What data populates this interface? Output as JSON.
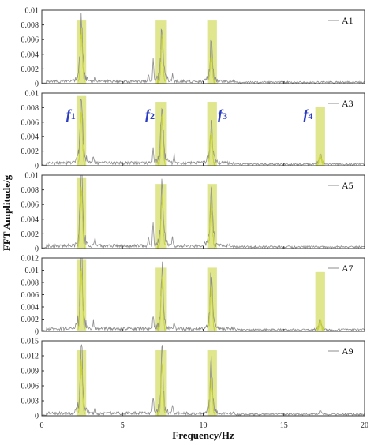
{
  "chart_data": {
    "type": "line",
    "xlabel": "Frequency/Hz",
    "ylabel": "FFT Amplitude/g",
    "xlim": [
      0,
      20
    ],
    "xticks": [
      0,
      5,
      10,
      15,
      20
    ],
    "line_color": "#8c8c8c",
    "highlight_color": "#d9e27a",
    "peak_color": "#c8d23e",
    "frequency_labels": [
      {
        "text": "f",
        "sub": "1",
        "x": 1.7
      },
      {
        "text": "f",
        "sub": "2",
        "x": 6.6
      },
      {
        "text": "f",
        "sub": "3",
        "x": 11.1
      },
      {
        "text": "f",
        "sub": "4",
        "x": 16.4
      }
    ],
    "panels": [
      {
        "legend": "A1",
        "ylim": [
          0,
          0.01
        ],
        "yticks": [
          "0",
          "0.002",
          "0.004",
          "0.006",
          "0.008",
          "0.01"
        ],
        "bands": [
          {
            "x0": 2.15,
            "x1": 2.75,
            "top": 0.0087
          },
          {
            "x0": 7.05,
            "x1": 7.75,
            "top": 0.0087
          },
          {
            "x0": 10.25,
            "x1": 10.85,
            "top": 0.0087
          }
        ],
        "peaks": [
          {
            "f": 2.45,
            "a": 0.0078
          },
          {
            "f": 7.45,
            "a": 0.0062
          },
          {
            "f": 10.5,
            "a": 0.0043
          }
        ],
        "spikes": [
          {
            "f": 3.3,
            "a": 0.0008
          },
          {
            "f": 6.9,
            "a": 0.003
          },
          {
            "f": 6.6,
            "a": 0.0012
          },
          {
            "f": 8.1,
            "a": 0.0012
          }
        ],
        "noise": 0.0005
      },
      {
        "legend": "A3",
        "ylim": [
          0,
          0.01
        ],
        "yticks": [
          "0",
          "0.002",
          "0.004",
          "0.006",
          "0.008",
          "0.01"
        ],
        "bands": [
          {
            "x0": 2.15,
            "x1": 2.75,
            "top": 0.0096
          },
          {
            "x0": 7.05,
            "x1": 7.75,
            "top": 0.0088
          },
          {
            "x0": 10.25,
            "x1": 10.85,
            "top": 0.0088
          },
          {
            "x0": 16.95,
            "x1": 17.55,
            "top": 0.0081
          }
        ],
        "peaks": [
          {
            "f": 2.45,
            "a": 0.0082
          },
          {
            "f": 7.45,
            "a": 0.0068
          },
          {
            "f": 10.5,
            "a": 0.0049
          },
          {
            "f": 17.25,
            "a": 0.0012
          }
        ],
        "spikes": [
          {
            "f": 3.2,
            "a": 0.001
          },
          {
            "f": 6.9,
            "a": 0.0025
          },
          {
            "f": 8.2,
            "a": 0.0012
          }
        ],
        "noise": 0.0006
      },
      {
        "legend": "A5",
        "ylim": [
          0,
          0.01
        ],
        "yticks": [
          "0",
          "0.002",
          "0.004",
          "0.006",
          "0.008",
          "0.01"
        ],
        "bands": [
          {
            "x0": 2.15,
            "x1": 2.75,
            "top": 0.0097
          },
          {
            "x0": 7.05,
            "x1": 7.75,
            "top": 0.0088
          },
          {
            "x0": 10.25,
            "x1": 10.85,
            "top": 0.0088
          }
        ],
        "peaks": [
          {
            "f": 2.45,
            "a": 0.0088
          },
          {
            "f": 7.45,
            "a": 0.0072
          },
          {
            "f": 10.5,
            "a": 0.0068
          }
        ],
        "spikes": [
          {
            "f": 3.3,
            "a": 0.0012
          },
          {
            "f": 6.9,
            "a": 0.0035
          },
          {
            "f": 6.6,
            "a": 0.0015
          },
          {
            "f": 8.1,
            "a": 0.0014
          }
        ],
        "noise": 0.0006
      },
      {
        "legend": "A7",
        "ylim": [
          0,
          0.012
        ],
        "yticks": [
          "0",
          "0.002",
          "0.004",
          "0.006",
          "0.008",
          "0.01",
          "0.012"
        ],
        "bands": [
          {
            "x0": 2.15,
            "x1": 2.75,
            "top": 0.0118
          },
          {
            "x0": 7.05,
            "x1": 7.75,
            "top": 0.0104
          },
          {
            "x0": 10.25,
            "x1": 10.85,
            "top": 0.0104
          },
          {
            "x0": 16.95,
            "x1": 17.55,
            "top": 0.0097
          }
        ],
        "peaks": [
          {
            "f": 2.45,
            "a": 0.0105
          },
          {
            "f": 7.45,
            "a": 0.0082
          },
          {
            "f": 10.5,
            "a": 0.0078
          },
          {
            "f": 17.25,
            "a": 0.0016
          }
        ],
        "spikes": [
          {
            "f": 3.2,
            "a": 0.0014
          },
          {
            "f": 6.9,
            "a": 0.0028
          },
          {
            "f": 8.2,
            "a": 0.0015
          }
        ],
        "noise": 0.0007
      },
      {
        "legend": "A9",
        "ylim": [
          0,
          0.015
        ],
        "yticks": [
          "0",
          "0.003",
          "0.006",
          "0.009",
          "0.012",
          "0.015"
        ],
        "bands": [
          {
            "x0": 2.15,
            "x1": 2.75,
            "top": 0.0131
          },
          {
            "x0": 7.05,
            "x1": 7.75,
            "top": 0.0131
          },
          {
            "x0": 10.25,
            "x1": 10.85,
            "top": 0.0131
          }
        ],
        "peaks": [
          {
            "f": 2.45,
            "a": 0.0112
          },
          {
            "f": 7.45,
            "a": 0.0102
          },
          {
            "f": 10.5,
            "a": 0.0082
          },
          {
            "f": 17.25,
            "a": 0.0006
          }
        ],
        "spikes": [
          {
            "f": 3.3,
            "a": 0.0014
          },
          {
            "f": 6.9,
            "a": 0.004
          },
          {
            "f": 8.1,
            "a": 0.0016
          }
        ],
        "noise": 0.0008
      }
    ]
  }
}
